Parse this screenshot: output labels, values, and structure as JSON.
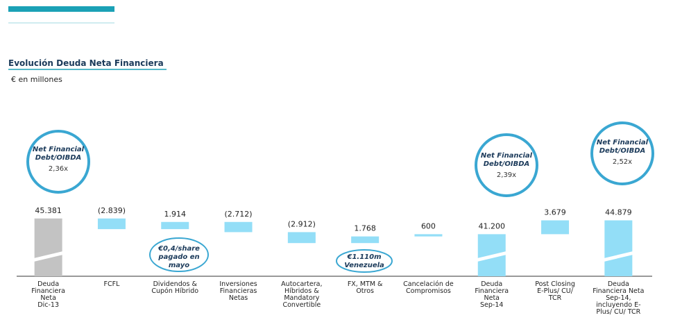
{
  "header": {
    "title": "Evolución Deuda Neta Financiera",
    "subtitle": "€ en millones"
  },
  "chart_data": {
    "type": "waterfall",
    "categories": [
      "Deuda\nFinanciera\nNeta\nDic-13",
      "FCFL",
      "Dividendos &\nCupón Híbrido",
      "Inversiones\nFinancieras\nNetas",
      "Autocartera,\nHíbridos &\nMandatory\nConvertible",
      "FX, MTM &\nOtros",
      "Cancelación de\nCompromisos",
      "Deuda\nFinanciera\nNeta\nSep-14",
      "Post Closing\nE-Plus/ CU/\nTCR",
      "Deuda\nFinanciera Neta\nSep-14,\nincluyendo E-\nPlus/ CU/ TCR"
    ],
    "values": [
      45381,
      -2839,
      1914,
      -2712,
      -2912,
      1768,
      600,
      41200,
      3679,
      44879
    ],
    "value_labels": [
      "45.381",
      "(2.839)",
      "1.914",
      "(2.712)",
      "(2.912)",
      "1.768",
      "600",
      "41.200",
      "3.679",
      "44.879"
    ],
    "totals": [
      0,
      7,
      9
    ],
    "colors": [
      "#c3c3c3",
      "#93def7",
      "#93def7",
      "#93def7",
      "#93def7",
      "#93def7",
      "#93def7",
      "#93def7",
      "#93def7",
      "#93def7"
    ],
    "ylim": [
      30000,
      47000
    ],
    "annotations": [
      {
        "title": "Net Financial\nDebt/OIBDA",
        "text": "2,36x"
      },
      {
        "title": "€0,4/share\npagado en\nmayo"
      },
      {
        "title": "€1.110m\nVenezuela"
      },
      {
        "title": "Net Financial\nDebt/OIBDA",
        "text": "2,39x"
      },
      {
        "title": "Net Financial\nDebt/OIBDA",
        "text": "2,52x"
      }
    ]
  }
}
